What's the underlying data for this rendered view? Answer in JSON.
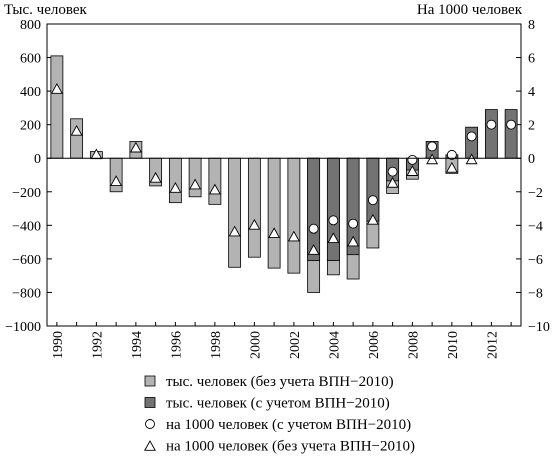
{
  "chart_data": {
    "type": "bar",
    "left_axis_label": "Тыс. человек",
    "right_axis_label": "На 1000 человек",
    "ylim_left": [
      -1000,
      800
    ],
    "ylim_right": [
      -10,
      8
    ],
    "yticks_left": [
      800,
      600,
      400,
      200,
      0,
      -200,
      -400,
      -600,
      -800,
      -1000
    ],
    "yticks_right": [
      8,
      6,
      4,
      2,
      0,
      -2,
      -4,
      -6,
      -8,
      -10
    ],
    "x_years": [
      1990,
      1991,
      1992,
      1993,
      1994,
      1995,
      1996,
      1997,
      1998,
      1999,
      2000,
      2001,
      2002,
      2003,
      2004,
      2005,
      2006,
      2007,
      2008,
      2009,
      2010,
      2011,
      2012,
      2013
    ],
    "x_tick_labels": [
      "1990",
      "1992",
      "1994",
      "1996",
      "1998",
      "2000",
      "2002",
      "2004",
      "2006",
      "2008",
      "2010",
      "2012"
    ],
    "grid": false,
    "colors": {
      "without_vpn": "#b3b3b3",
      "with_vpn": "#737373",
      "outline": "#000000"
    },
    "series": [
      {
        "name": "тыс. человек (без учета ВПН−2010)",
        "axis": "left",
        "kind": "bar",
        "years": [
          1990,
          1991,
          1992,
          1993,
          1994,
          1995,
          1996,
          1997,
          1998,
          1999,
          2000,
          2001,
          2002,
          2003,
          2004,
          2005,
          2006,
          2007,
          2008,
          2009,
          2010
        ],
        "values": [
          610,
          235,
          40,
          -200,
          100,
          -165,
          -265,
          -230,
          -275,
          -650,
          -590,
          -655,
          -685,
          -800,
          -695,
          -720,
          -535,
          -210,
          -125,
          10,
          -90
        ]
      },
      {
        "name": "тыс. человек (с учетом ВПН−2010)",
        "axis": "left",
        "kind": "bar",
        "years": [
          2003,
          2004,
          2005,
          2006,
          2007,
          2008,
          2009,
          2010,
          2011,
          2012,
          2013
        ],
        "values": [
          -610,
          -610,
          -575,
          -375,
          -135,
          -70,
          100,
          20,
          185,
          290,
          290
        ]
      },
      {
        "name": "на 1000 человек (с учетом ВПН−2010)",
        "axis": "right",
        "kind": "circle",
        "years": [
          2003,
          2004,
          2005,
          2006,
          2007,
          2008,
          2009,
          2010,
          2011,
          2012,
          2013
        ],
        "values": [
          -4.2,
          -3.7,
          -3.9,
          -2.5,
          -0.8,
          -0.1,
          0.7,
          0.2,
          1.3,
          2.0,
          2.0
        ]
      },
      {
        "name": "на 1000 человек (без учета ВПН−2010)",
        "axis": "right",
        "kind": "triangle",
        "years": [
          1990,
          1991,
          1992,
          1993,
          1994,
          1995,
          1996,
          1997,
          1998,
          1999,
          2000,
          2001,
          2002,
          2003,
          2004,
          2005,
          2006,
          2007,
          2008,
          2009,
          2010,
          2011
        ],
        "values": [
          4.1,
          1.6,
          0.2,
          -1.4,
          0.6,
          -1.2,
          -1.8,
          -1.6,
          -1.9,
          -4.4,
          -4.0,
          -4.5,
          -4.7,
          -5.5,
          -4.8,
          -5.0,
          -3.7,
          -1.5,
          -0.8,
          -0.1,
          -0.6,
          -0.1
        ]
      }
    ],
    "legend": {
      "placement": "bottom",
      "items": [
        {
          "marker": "square-light",
          "label": "тыс. человек (без учета ВПН−2010)"
        },
        {
          "marker": "square-dark",
          "label": "тыс. человек (с учетом ВПН−2010)"
        },
        {
          "marker": "circle",
          "label": "на 1000 человек (с учетом ВПН−2010)"
        },
        {
          "marker": "triangle",
          "label": "на 1000 человек (без учета ВПН−2010)"
        }
      ]
    }
  }
}
